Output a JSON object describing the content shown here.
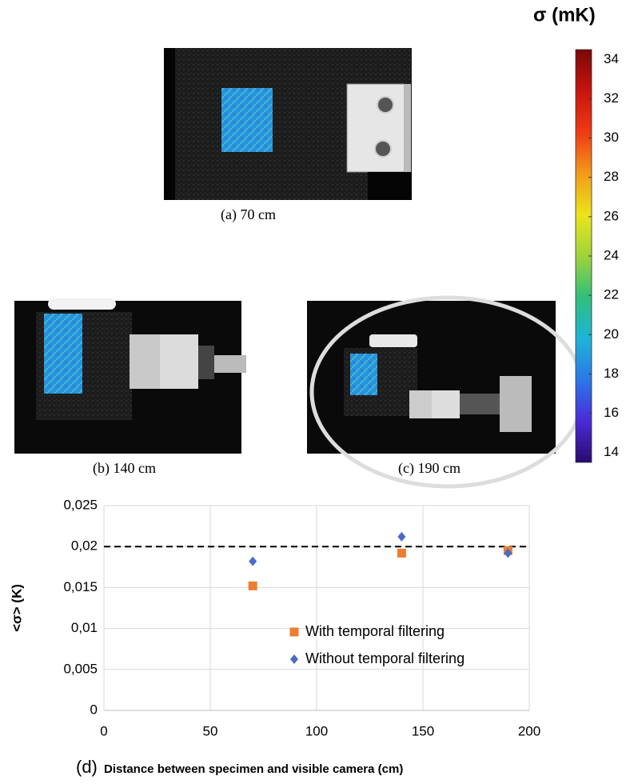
{
  "images": [
    {
      "caption": "(a) 70 cm"
    },
    {
      "caption": "(b) 140 cm"
    },
    {
      "caption": "(c) 190 cm"
    }
  ],
  "colorbar": {
    "title": "σ (mK)",
    "ylim": [
      13.5,
      34.5
    ],
    "yticks": [
      14,
      16,
      18,
      20,
      22,
      24,
      26,
      28,
      30,
      32,
      34
    ],
    "colors": [
      "#2a0a6e",
      "#4b2ad8",
      "#2a78e8",
      "#1eb4d8",
      "#2fbf7a",
      "#9fd43a",
      "#ece41a",
      "#f39a1a",
      "#ee3a14",
      "#c8140e",
      "#7a0808"
    ]
  },
  "chart_data": {
    "type": "scatter",
    "panel_label": "(d)",
    "xlabel": "Distance between specimen and visible camera (cm)",
    "ylabel": "<σ> (K)",
    "xlim": [
      0,
      200
    ],
    "xticks": [
      0,
      50,
      100,
      150,
      200
    ],
    "ylim": [
      0,
      0.025
    ],
    "yticks": [
      0,
      {
        "value": 0.005,
        "label": "0,005"
      },
      {
        "value": 0.01,
        "label": "0,01"
      },
      {
        "value": 0.015,
        "label": "0,015"
      },
      {
        "value": 0.02,
        "label": "0,02"
      },
      {
        "value": 0.025,
        "label": "0,025"
      }
    ],
    "grid": true,
    "hline": 0.02,
    "series": [
      {
        "name": "With temporal filtering",
        "color": "#ED7D31",
        "marker": "square",
        "x": [
          70,
          140,
          190
        ],
        "values": [
          0.0152,
          0.0192,
          0.0195
        ]
      },
      {
        "name": "Without temporal filtering",
        "color": "#4A6BC8",
        "marker": "diamond",
        "x": [
          70,
          140,
          190
        ],
        "values": [
          0.0182,
          0.0212,
          0.0192
        ]
      }
    ]
  }
}
